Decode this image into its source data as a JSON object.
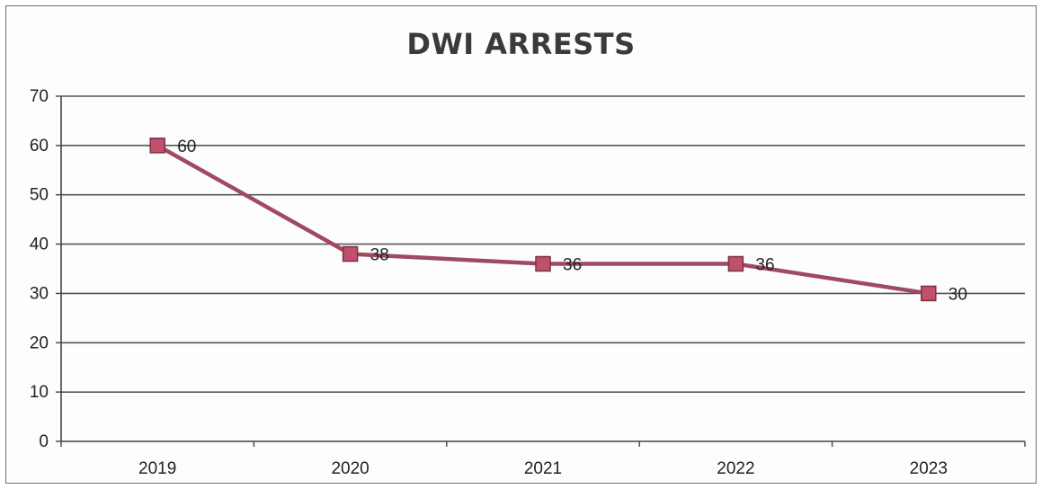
{
  "chart_data": {
    "type": "line",
    "title": "DWI ARRESTS",
    "categories": [
      "2019",
      "2020",
      "2021",
      "2022",
      "2023"
    ],
    "series": [
      {
        "values": [
          60,
          38,
          36,
          36,
          30
        ],
        "data_labels": [
          "60",
          "38",
          "36",
          "36",
          "30"
        ]
      }
    ],
    "ylim": [
      0,
      70
    ],
    "y_ticks": [
      0,
      10,
      20,
      30,
      40,
      50,
      60,
      70
    ],
    "y_tick_labels": [
      "0",
      "10",
      "20",
      "30",
      "40",
      "50",
      "60",
      "70"
    ],
    "grid": true,
    "legend": "none",
    "colors": {
      "line": "#9e4a60",
      "marker_fill": "#c0506b",
      "marker_stroke": "#7a3046",
      "grid": "#555555"
    }
  }
}
